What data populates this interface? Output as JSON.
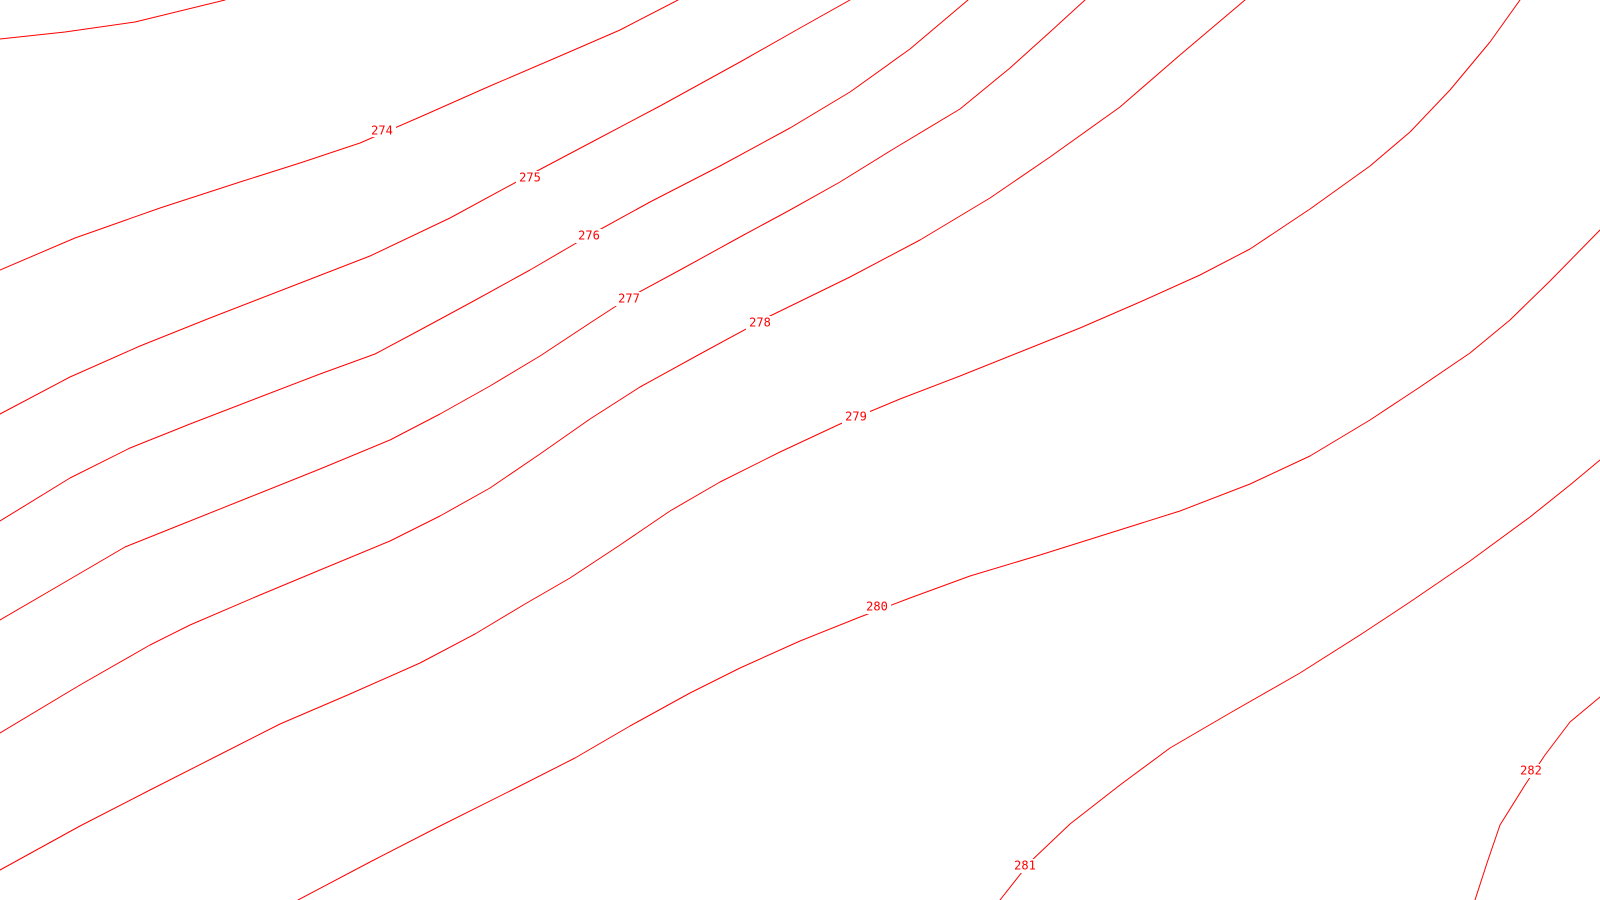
{
  "map": {
    "line_color": "#ff0000",
    "background_color": "#ffffff",
    "labels": {
      "c274": "274",
      "c275": "275",
      "c276": "276",
      "c277": "277",
      "c278": "278",
      "c279": "279",
      "c280": "280",
      "c281": "281",
      "c282": "282"
    }
  }
}
